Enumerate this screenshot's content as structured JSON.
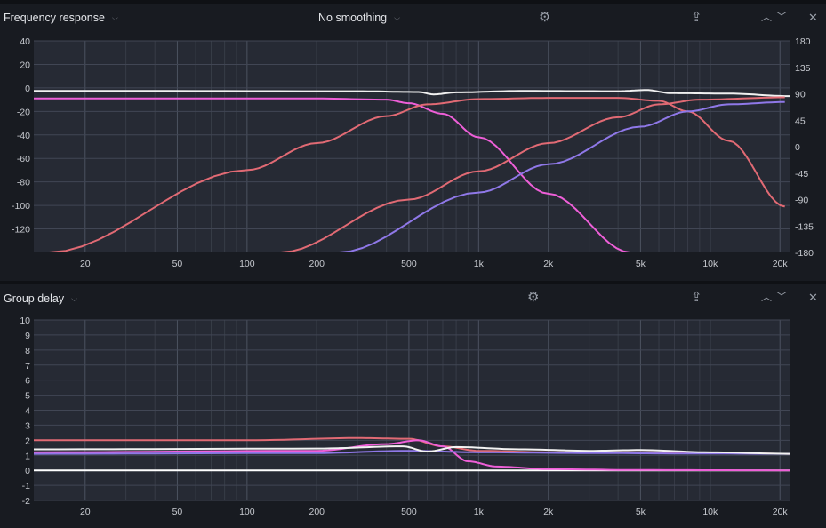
{
  "panel1": {
    "title": "Frequency response",
    "smoothing": "No smoothing",
    "icons": [
      "gear-icon",
      "export-icon",
      "chevron-up-icon",
      "chevron-down-icon",
      "close-icon"
    ]
  },
  "panel2": {
    "title": "Group delay",
    "icons": [
      "gear-icon",
      "export-icon",
      "chevron-up-icon",
      "chevron-down-icon",
      "close-icon"
    ]
  },
  "glyphs": {
    "chev": "⌵",
    "gear": "⚙",
    "export": "⇪",
    "up": "︿",
    "down": "﹀",
    "close": "✕"
  },
  "chart_data": [
    {
      "type": "line",
      "xscale": "log",
      "xlim": [
        12,
        22000
      ],
      "ylim": [
        -140,
        40
      ],
      "y2lim": [
        -180,
        180
      ],
      "grid": true,
      "xticks": [
        "20",
        "50",
        "100",
        "200",
        "500",
        "1k",
        "2k",
        "5k",
        "10k",
        "20k"
      ],
      "yticks": [
        "40",
        "20",
        "0",
        "-20",
        "-40",
        "-60",
        "-80",
        "-100",
        "-120"
      ],
      "y2ticks": [
        "180",
        "135",
        "90",
        "45",
        "0",
        "-45",
        "-90",
        "-135",
        "-180"
      ],
      "series": [
        {
          "color": "#f0f0f0",
          "x": [
            12,
            300,
            550,
            640,
            800,
            1500,
            4000,
            5300,
            6800,
            12000,
            22000
          ],
          "y": [
            -2.5,
            -2.8,
            -3.5,
            -5.5,
            -3.8,
            -2.6,
            -2.8,
            -1.8,
            -4.5,
            -4.8,
            -7
          ]
        },
        {
          "color": "#ee5fd8",
          "x": [
            12,
            200,
            400,
            500,
            700,
            1000,
            2000,
            4500
          ],
          "y": [
            -9,
            -9,
            -10,
            -13,
            -22,
            -42,
            -90,
            -140
          ]
        },
        {
          "color": "#e16a74",
          "x": [
            14,
            100,
            200,
            400,
            600,
            1000,
            2000,
            4000,
            6000,
            8000,
            12000,
            21000
          ],
          "y": [
            -140,
            -70,
            -47,
            -24,
            -14,
            -9.5,
            -8.5,
            -8.5,
            -11,
            -20,
            -45,
            -101
          ]
        },
        {
          "color": "#e16a74",
          "x": [
            140,
            500,
            1000,
            2000,
            4000,
            6000,
            9000,
            21000
          ],
          "y": [
            -140,
            -95,
            -71,
            -47,
            -25,
            -14,
            -10,
            -8
          ]
        },
        {
          "color": "#8f78e8",
          "x": [
            250,
            1000,
            2000,
            5000,
            8000,
            12000,
            21000
          ],
          "y": [
            -140,
            -89,
            -65,
            -33,
            -20,
            -14,
            -12
          ]
        }
      ]
    },
    {
      "type": "line",
      "xscale": "log",
      "xlim": [
        12,
        22000
      ],
      "ylim": [
        -2,
        10
      ],
      "grid": true,
      "xticks": [
        "20",
        "50",
        "100",
        "200",
        "500",
        "1k",
        "2k",
        "5k",
        "10k",
        "20k"
      ],
      "yticks": [
        "10",
        "9",
        "8",
        "7",
        "6",
        "5",
        "4",
        "3",
        "2",
        "1",
        "0",
        "-1",
        "-2"
      ],
      "series": [
        {
          "color": "#ffffff",
          "x": [
            12,
            22000
          ],
          "y": [
            0,
            0
          ]
        },
        {
          "color": "#e16a74",
          "x": [
            12,
            100,
            300,
            500,
            700,
            1000,
            2000,
            5000,
            10000,
            22000
          ],
          "y": [
            2.0,
            2.0,
            2.15,
            2.1,
            1.6,
            1.3,
            1.2,
            1.2,
            1.15,
            1.1
          ]
        },
        {
          "color": "#ee5fd8",
          "x": [
            12,
            200,
            400,
            550,
            700,
            900,
            1200,
            2000,
            5000,
            22000
          ],
          "y": [
            1.2,
            1.3,
            1.75,
            2.0,
            1.6,
            0.6,
            0.25,
            0.08,
            0.02,
            0.0
          ]
        },
        {
          "color": "#8f78e8",
          "x": [
            12,
            200,
            500,
            1000,
            3000,
            8000,
            22000
          ],
          "y": [
            1.1,
            1.15,
            1.3,
            1.2,
            1.15,
            1.12,
            1.1
          ]
        },
        {
          "color": "#f2f2f2",
          "x": [
            12,
            200,
            470,
            600,
            800,
            1500,
            3000,
            5000,
            10000,
            22000
          ],
          "y": [
            1.4,
            1.45,
            1.6,
            1.25,
            1.55,
            1.4,
            1.3,
            1.35,
            1.2,
            1.1
          ]
        }
      ]
    }
  ]
}
